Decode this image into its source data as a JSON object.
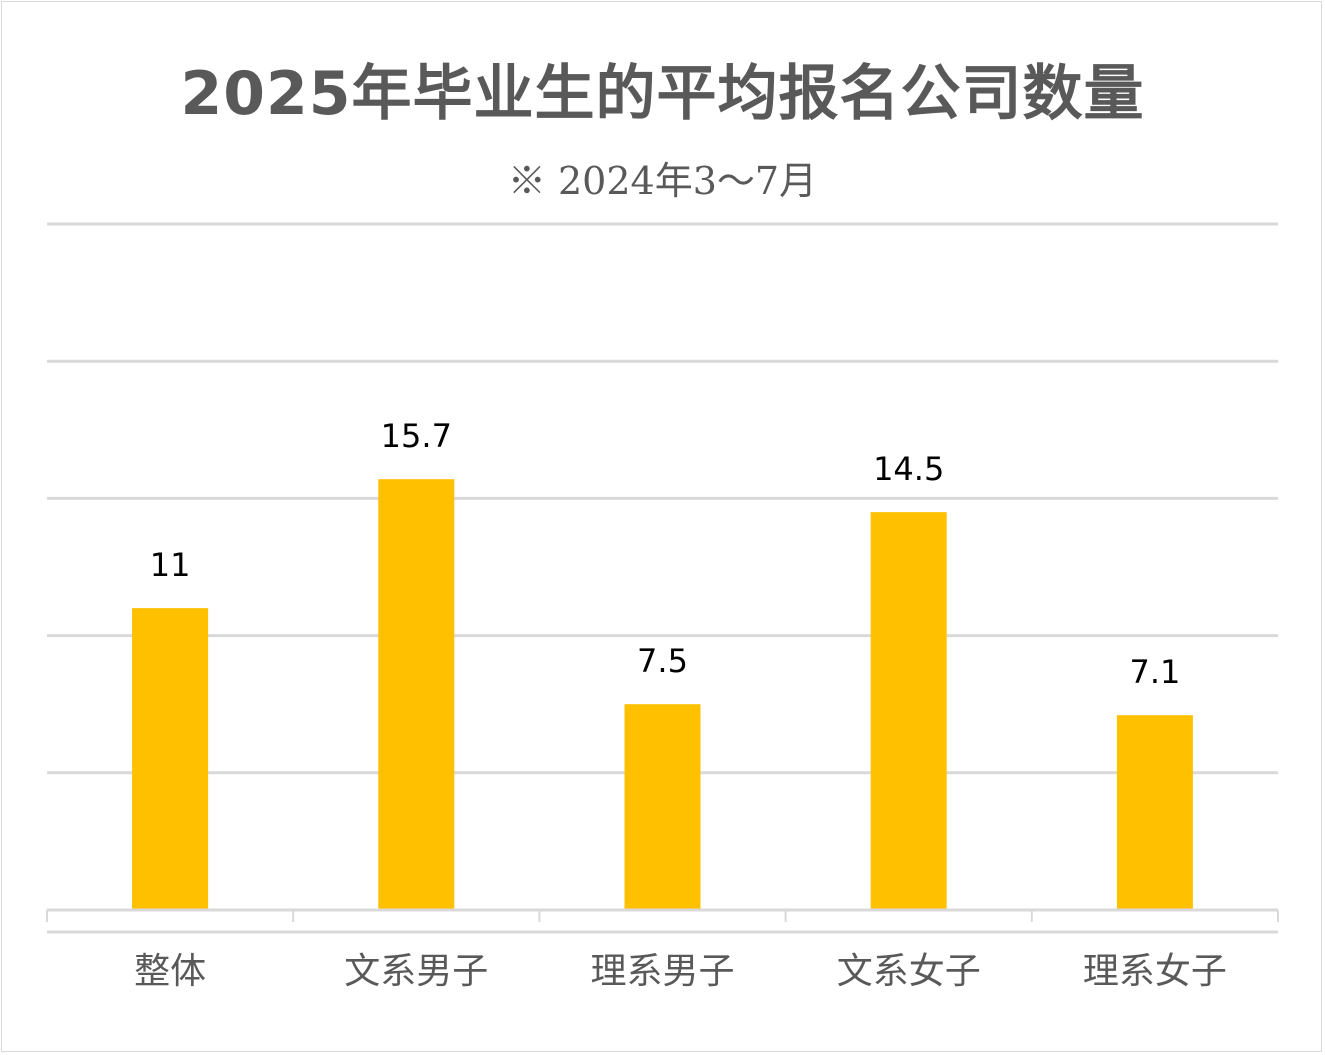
{
  "chart_data": {
    "type": "bar",
    "title": "2025年毕业生的平均报名公司数量",
    "subtitle": "※ 2024年3～7月",
    "categories": [
      "整体",
      "文系男子",
      "理系男子",
      "文系女子",
      "理系女子"
    ],
    "values": [
      11,
      15.7,
      7.5,
      14.5,
      7.1
    ],
    "data_labels": [
      "11",
      "15.7",
      "7.5",
      "14.5",
      "7.1"
    ],
    "ylim": [
      0,
      25
    ],
    "gridline_values": [
      5,
      10,
      15,
      20,
      25
    ],
    "grid": true,
    "legend": "none",
    "xlabel": "",
    "ylabel": "",
    "colors": {
      "bar": "#ffc000",
      "grid": "#d9d9d9",
      "title_text": "#595959",
      "label_text": "#000000",
      "category_text": "#595959"
    }
  }
}
